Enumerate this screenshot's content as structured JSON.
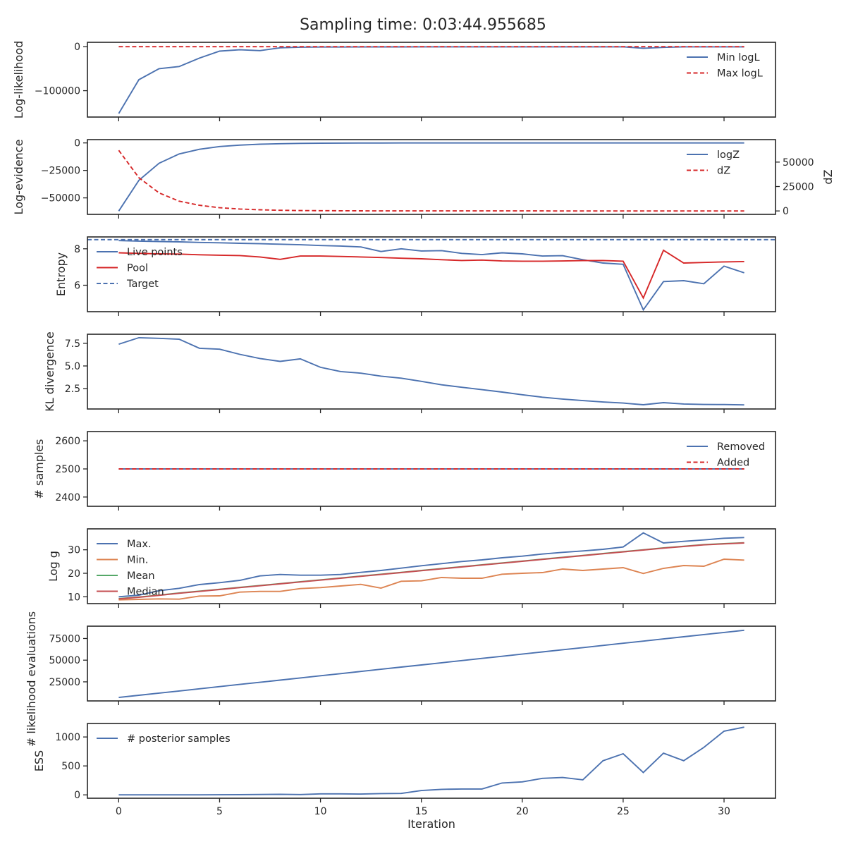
{
  "figure": {
    "title": "Sampling time: 0:03:44.955685"
  },
  "colors": {
    "blue": "#4c72b0",
    "red": "#d62728",
    "orange": "#dd8452",
    "green": "#55a868",
    "brown": "#c44e52"
  },
  "chart_data": [
    {
      "id": "loglikelihood",
      "type": "line",
      "ylabel": "Log-likelihood",
      "x": [
        0,
        1,
        2,
        3,
        4,
        5,
        6,
        7,
        8,
        9,
        10,
        11,
        12,
        13,
        14,
        15,
        16,
        17,
        18,
        19,
        20,
        21,
        22,
        23,
        24,
        25,
        26,
        27,
        28,
        29,
        30,
        31
      ],
      "ylim": [
        -160000,
        10000
      ],
      "yticks": [
        0,
        -100000
      ],
      "yticklabels": [
        "0",
        "−100000"
      ],
      "legend": "right",
      "series": [
        {
          "name": "Min logL",
          "color": "#4c72b0",
          "dash": false,
          "values": [
            -152000,
            -75000,
            -50000,
            -45000,
            -26000,
            -10000,
            -7000,
            -9000,
            -2500,
            -1000,
            -800,
            -700,
            -600,
            -500,
            -400,
            -300,
            -300,
            -200,
            -200,
            -200,
            -200,
            -200,
            -200,
            -200,
            -200,
            -200,
            -3500,
            -1500,
            -200,
            -200,
            -200,
            -200
          ]
        },
        {
          "name": "Max logL",
          "color": "#d62728",
          "dash": true,
          "values": [
            0,
            0,
            0,
            0,
            0,
            0,
            0,
            0,
            0,
            0,
            0,
            0,
            0,
            0,
            0,
            0,
            0,
            0,
            0,
            0,
            0,
            0,
            0,
            0,
            0,
            0,
            0,
            0,
            0,
            0,
            0,
            0
          ]
        }
      ]
    },
    {
      "id": "logevidence",
      "type": "line",
      "ylabel": "Log-evidence",
      "ylabel_right": "dZ",
      "x": [
        0,
        1,
        2,
        3,
        4,
        5,
        6,
        7,
        8,
        9,
        10,
        11,
        12,
        13,
        14,
        15,
        16,
        17,
        18,
        19,
        20,
        21,
        22,
        23,
        24,
        25,
        26,
        27,
        28,
        29,
        30,
        31
      ],
      "ylim": [
        -65000,
        3000
      ],
      "yticks": [
        0,
        -25000,
        -50000
      ],
      "yticklabels": [
        "0",
        "−25000",
        "−50000"
      ],
      "ylim_right": [
        -3500,
        73000
      ],
      "yticks_right": [
        0,
        25000,
        50000
      ],
      "yticklabels_right": [
        "0",
        "25000",
        "50000"
      ],
      "legend": "right",
      "series": [
        {
          "name": "logZ",
          "color": "#4c72b0",
          "dash": false,
          "axis": "left",
          "values": [
            -62000,
            -34000,
            -18500,
            -10000,
            -5800,
            -3300,
            -2000,
            -1200,
            -700,
            -400,
            -250,
            -150,
            -100,
            -60,
            -40,
            -25,
            -15,
            -10,
            -5,
            -3,
            -2,
            -1,
            0,
            0,
            0,
            0,
            0,
            0,
            0,
            0,
            0,
            0
          ]
        },
        {
          "name": "dZ",
          "color": "#d62728",
          "dash": true,
          "axis": "right",
          "values": [
            62000,
            34000,
            18500,
            10000,
            5800,
            3300,
            2000,
            1200,
            700,
            400,
            250,
            150,
            100,
            60,
            40,
            25,
            15,
            10,
            5,
            3,
            2,
            1,
            0,
            0,
            0,
            0,
            0,
            0,
            0,
            0,
            0,
            0
          ]
        }
      ]
    },
    {
      "id": "entropy",
      "type": "line",
      "ylabel": "Entropy",
      "x": [
        0,
        1,
        2,
        3,
        4,
        5,
        6,
        7,
        8,
        9,
        10,
        11,
        12,
        13,
        14,
        15,
        16,
        17,
        18,
        19,
        20,
        21,
        22,
        23,
        24,
        25,
        26,
        27,
        28,
        29,
        30,
        31
      ],
      "ylim": [
        4.55,
        8.65
      ],
      "yticks": [
        8,
        6
      ],
      "yticklabels": [
        "8",
        "6"
      ],
      "legend": "left",
      "series": [
        {
          "name": "Live points",
          "color": "#4c72b0",
          "dash": false,
          "values": [
            8.45,
            8.42,
            8.4,
            8.38,
            8.35,
            8.33,
            8.3,
            8.28,
            8.25,
            8.22,
            8.18,
            8.15,
            8.1,
            7.85,
            8.0,
            7.88,
            7.9,
            7.75,
            7.68,
            7.78,
            7.72,
            7.6,
            7.62,
            7.4,
            7.22,
            7.15,
            4.65,
            6.2,
            6.25,
            6.08,
            7.05,
            6.68
          ]
        },
        {
          "name": "Pool",
          "color": "#d62728",
          "dash": false,
          "values": [
            7.78,
            7.75,
            7.72,
            7.71,
            7.67,
            7.65,
            7.63,
            7.55,
            7.42,
            7.6,
            7.6,
            7.58,
            7.55,
            7.52,
            7.48,
            7.45,
            7.4,
            7.36,
            7.38,
            7.33,
            7.32,
            7.32,
            7.33,
            7.35,
            7.36,
            7.32,
            5.3,
            7.92,
            7.22,
            7.25,
            7.28,
            7.3
          ]
        },
        {
          "name": "Target",
          "color": "#4c72b0",
          "dash": true,
          "values": [
            8.5,
            8.5,
            8.5,
            8.5,
            8.5,
            8.5,
            8.5,
            8.5,
            8.5,
            8.5,
            8.5,
            8.5,
            8.5,
            8.5,
            8.5,
            8.5,
            8.5,
            8.5,
            8.5,
            8.5,
            8.5,
            8.5,
            8.5,
            8.5,
            8.5,
            8.5,
            8.5,
            8.5,
            8.5,
            8.5,
            8.5,
            8.5
          ],
          "full_width": true
        }
      ]
    },
    {
      "id": "kl",
      "type": "line",
      "ylabel": "KL divergence",
      "x": [
        0,
        1,
        2,
        3,
        4,
        5,
        6,
        7,
        8,
        9,
        10,
        11,
        12,
        13,
        14,
        15,
        16,
        17,
        18,
        19,
        20,
        21,
        22,
        23,
        24,
        25,
        26,
        27,
        28,
        29,
        30,
        31
      ],
      "ylim": [
        0.25,
        8.5
      ],
      "yticks": [
        7.5,
        5.0,
        2.5
      ],
      "yticklabels": [
        "7.5",
        "5.0",
        "2.5"
      ],
      "legend": "none",
      "series": [
        {
          "name": "",
          "color": "#4c72b0",
          "dash": false,
          "values": [
            7.4,
            8.12,
            8.05,
            7.95,
            6.95,
            6.85,
            6.28,
            5.82,
            5.5,
            5.78,
            4.85,
            4.38,
            4.2,
            3.88,
            3.65,
            3.3,
            2.92,
            2.65,
            2.38,
            2.12,
            1.82,
            1.55,
            1.35,
            1.18,
            1.02,
            0.9,
            0.72,
            0.95,
            0.8,
            0.75,
            0.74,
            0.7
          ]
        }
      ]
    },
    {
      "id": "samples",
      "type": "line",
      "ylabel": "# samples",
      "x": [
        0,
        1,
        2,
        3,
        4,
        5,
        6,
        7,
        8,
        9,
        10,
        11,
        12,
        13,
        14,
        15,
        16,
        17,
        18,
        19,
        20,
        21,
        22,
        23,
        24,
        25,
        26,
        27,
        28,
        29,
        30,
        31
      ],
      "ylim": [
        2367,
        2633
      ],
      "yticks": [
        2600,
        2500,
        2400
      ],
      "yticklabels": [
        "2600",
        "2500",
        "2400"
      ],
      "legend": "right",
      "series": [
        {
          "name": "Removed",
          "color": "#4c72b0",
          "dash": false,
          "values": [
            2500,
            2500,
            2500,
            2500,
            2500,
            2500,
            2500,
            2500,
            2500,
            2500,
            2500,
            2500,
            2500,
            2500,
            2500,
            2500,
            2500,
            2500,
            2500,
            2500,
            2500,
            2500,
            2500,
            2500,
            2500,
            2500,
            2500,
            2500,
            2500,
            2500,
            2500,
            2500
          ]
        },
        {
          "name": "Added",
          "color": "#d62728",
          "dash": true,
          "values": [
            2500,
            2500,
            2500,
            2500,
            2500,
            2500,
            2500,
            2500,
            2500,
            2500,
            2500,
            2500,
            2500,
            2500,
            2500,
            2500,
            2500,
            2500,
            2500,
            2500,
            2500,
            2500,
            2500,
            2500,
            2500,
            2500,
            2500,
            2500,
            2500,
            2500,
            2500,
            2500
          ]
        }
      ]
    },
    {
      "id": "logg",
      "type": "line",
      "ylabel": "Log g",
      "x": [
        0,
        1,
        2,
        3,
        4,
        5,
        6,
        7,
        8,
        9,
        10,
        11,
        12,
        13,
        14,
        15,
        16,
        17,
        18,
        19,
        20,
        21,
        22,
        23,
        24,
        25,
        26,
        27,
        28,
        29,
        30,
        31
      ],
      "ylim": [
        7.1,
        38.9
      ],
      "yticks": [
        30,
        20,
        10
      ],
      "yticklabels": [
        "30",
        "20",
        "10"
      ],
      "legend": "left",
      "series": [
        {
          "name": "Max.",
          "color": "#4c72b0",
          "dash": false,
          "values": [
            10.0,
            10.7,
            12.6,
            13.6,
            15.2,
            16.0,
            17.0,
            18.9,
            19.5,
            19.2,
            19.2,
            19.5,
            20.4,
            21.2,
            22.2,
            23.2,
            24.1,
            25.0,
            25.7,
            26.6,
            27.3,
            28.2,
            28.9,
            29.5,
            30.2,
            31.2,
            37.2,
            32.9,
            33.6,
            34.2,
            34.9,
            35.2
          ]
        },
        {
          "name": "Min.",
          "color": "#dd8452",
          "dash": false,
          "values": [
            8.7,
            8.9,
            9.1,
            9.0,
            10.3,
            10.4,
            12.0,
            12.3,
            12.3,
            13.5,
            13.9,
            14.6,
            15.3,
            13.7,
            16.6,
            16.8,
            18.2,
            17.9,
            17.9,
            19.6,
            20.0,
            20.3,
            21.8,
            21.2,
            21.8,
            22.4,
            19.9,
            22.1,
            23.3,
            23.0,
            26.0,
            25.6
          ]
        },
        {
          "name": "Mean",
          "color": "#55a868",
          "dash": false,
          "values": [
            9.2,
            9.9,
            10.7,
            11.6,
            12.4,
            13.2,
            14.0,
            14.8,
            15.6,
            16.4,
            17.2,
            18.0,
            18.8,
            19.6,
            20.4,
            21.2,
            22.0,
            22.8,
            23.6,
            24.4,
            25.2,
            26.0,
            26.8,
            27.6,
            28.4,
            29.2,
            30.0,
            30.8,
            31.5,
            32.2,
            32.6,
            33.0
          ]
        },
        {
          "name": "Median",
          "color": "#c44e52",
          "dash": false,
          "values": [
            9.1,
            9.8,
            10.6,
            11.5,
            12.3,
            13.1,
            13.9,
            14.7,
            15.5,
            16.3,
            17.1,
            17.9,
            18.7,
            19.5,
            20.3,
            21.1,
            21.9,
            22.7,
            23.5,
            24.3,
            25.1,
            25.9,
            26.7,
            27.5,
            28.3,
            29.1,
            29.9,
            30.7,
            31.4,
            32.1,
            32.5,
            32.9
          ]
        }
      ]
    },
    {
      "id": "likelihood_evals",
      "type": "line",
      "ylabel": "# likelihood evaluations",
      "x": [
        0,
        1,
        2,
        3,
        4,
        5,
        6,
        7,
        8,
        9,
        10,
        11,
        12,
        13,
        14,
        15,
        16,
        17,
        18,
        19,
        20,
        21,
        22,
        23,
        24,
        25,
        26,
        27,
        28,
        29,
        30,
        31
      ],
      "ylim": [
        3000,
        89200
      ],
      "yticks": [
        75000,
        50000,
        25000
      ],
      "yticklabels": [
        "75000",
        "50000",
        "25000"
      ],
      "legend": "none",
      "series": [
        {
          "name": "",
          "color": "#4c72b0",
          "dash": false,
          "values": [
            7000,
            9500,
            12000,
            14500,
            17000,
            19500,
            22000,
            24500,
            27000,
            29500,
            32000,
            34500,
            37000,
            39500,
            42000,
            44500,
            47000,
            49500,
            52000,
            54500,
            57000,
            59500,
            62000,
            64500,
            67000,
            69500,
            72000,
            74500,
            77000,
            79500,
            82000,
            84500
          ]
        }
      ]
    },
    {
      "id": "ess",
      "type": "line",
      "ylabel": "ESS",
      "xlabel": "Iteration",
      "x": [
        0,
        1,
        2,
        3,
        4,
        5,
        6,
        7,
        8,
        9,
        10,
        11,
        12,
        13,
        14,
        15,
        16,
        17,
        18,
        19,
        20,
        21,
        22,
        23,
        24,
        25,
        26,
        27,
        28,
        29,
        30,
        31
      ],
      "ylim": [
        -58,
        1233
      ],
      "yticks": [
        1000,
        500,
        0
      ],
      "yticklabels": [
        "1000",
        "500",
        "0"
      ],
      "xlim": [
        -1.55,
        32.55
      ],
      "xticks": [
        0,
        5,
        10,
        15,
        20,
        25,
        30
      ],
      "xticklabels": [
        "0",
        "5",
        "10",
        "15",
        "20",
        "25",
        "30"
      ],
      "legend": "left",
      "series": [
        {
          "name": "# posterior samples",
          "color": "#4c72b0",
          "dash": false,
          "values": [
            0,
            0,
            0,
            0,
            0,
            2,
            4,
            6,
            10,
            5,
            18,
            18,
            14,
            22,
            25,
            75,
            95,
            102,
            102,
            205,
            225,
            285,
            300,
            260,
            590,
            710,
            385,
            720,
            590,
            820,
            1100,
            1170
          ]
        }
      ]
    }
  ]
}
